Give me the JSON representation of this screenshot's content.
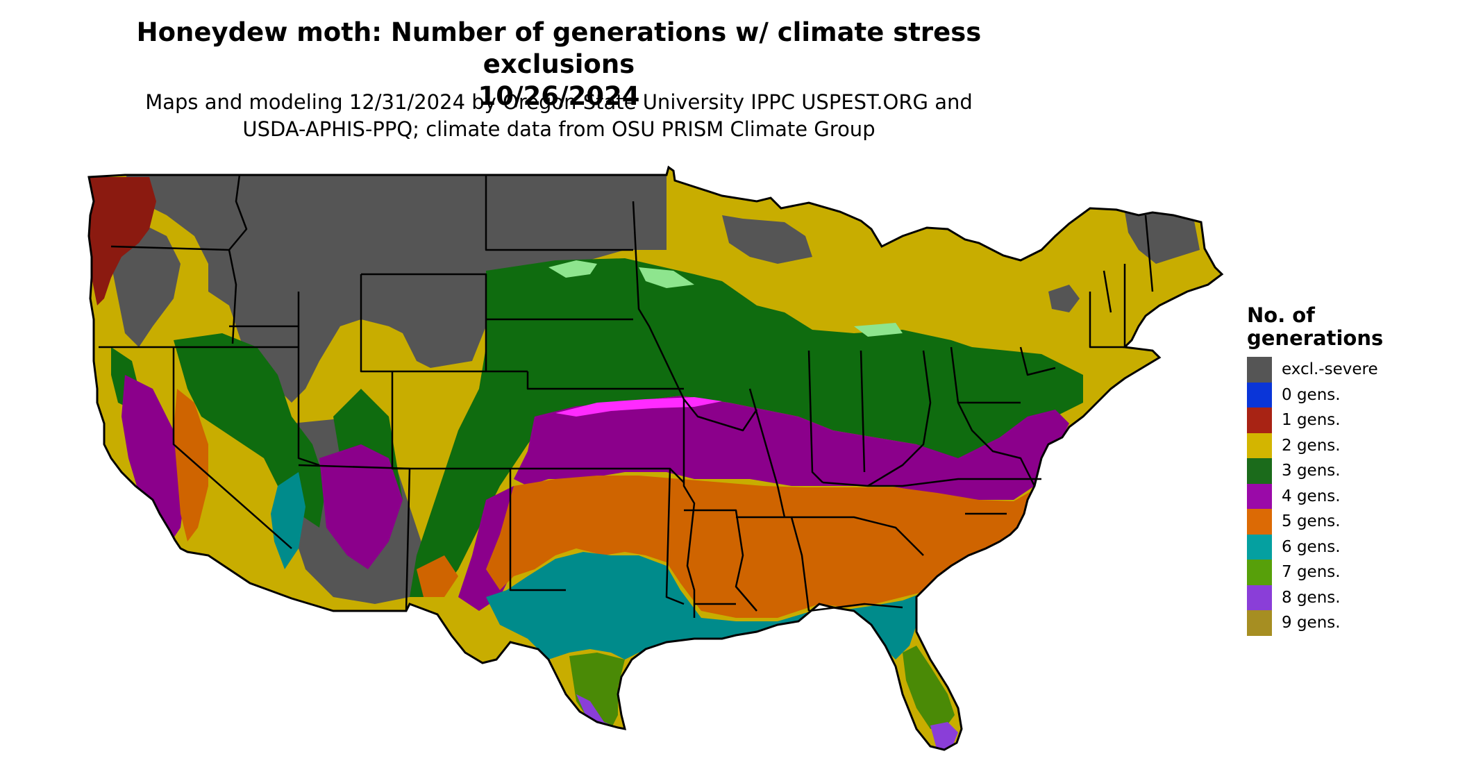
{
  "title_line1": "Honeydew moth: Number of generations w/ climate stress exclusions",
  "title_line2": "10/26/2024",
  "subtitle_line1": "Maps and modeling 12/31/2024 by Oregon State University IPPC USPEST.ORG and",
  "subtitle_line2": "USDA-APHIS-PPQ; climate data from OSU PRISM Climate Group",
  "legend": {
    "title_line1": "No. of",
    "title_line2": "generations",
    "items": [
      {
        "label": "excl.-severe",
        "color": "#555555"
      },
      {
        "label": "0 gens.",
        "color": "#0a35d8"
      },
      {
        "label": "1 gens.",
        "color": "#a82314"
      },
      {
        "label": "2 gens.",
        "color": "#d3b500"
      },
      {
        "label": "3 gens.",
        "color": "#1b6b1b"
      },
      {
        "label": "4 gens.",
        "color": "#9a0aa8"
      },
      {
        "label": "5 gens.",
        "color": "#dc6a05"
      },
      {
        "label": "6 gens.",
        "color": "#05a0a0"
      },
      {
        "label": "7 gens.",
        "color": "#57a00a"
      },
      {
        "label": "8 gens.",
        "color": "#8a3ed8"
      },
      {
        "label": "9 gens.",
        "color": "#a68e22"
      }
    ]
  },
  "map_colors": {
    "excl": "#555555",
    "gen1": "#8b1a10",
    "gen2": "#c8ad00",
    "gen3": "#0f6c0f",
    "gen3_light": "#2e8b2e",
    "gen4": "#8b008b",
    "gen4_bright": "#ff2bff",
    "gen5": "#cf6400",
    "gen5_light": "#f59a4a",
    "gen6": "#008b8b",
    "gen6_bright": "#00e5e5",
    "gen7": "#4a8a06",
    "gen8": "#8a3ed8",
    "lightgreen": "#8ee58e",
    "border": "#000000"
  }
}
